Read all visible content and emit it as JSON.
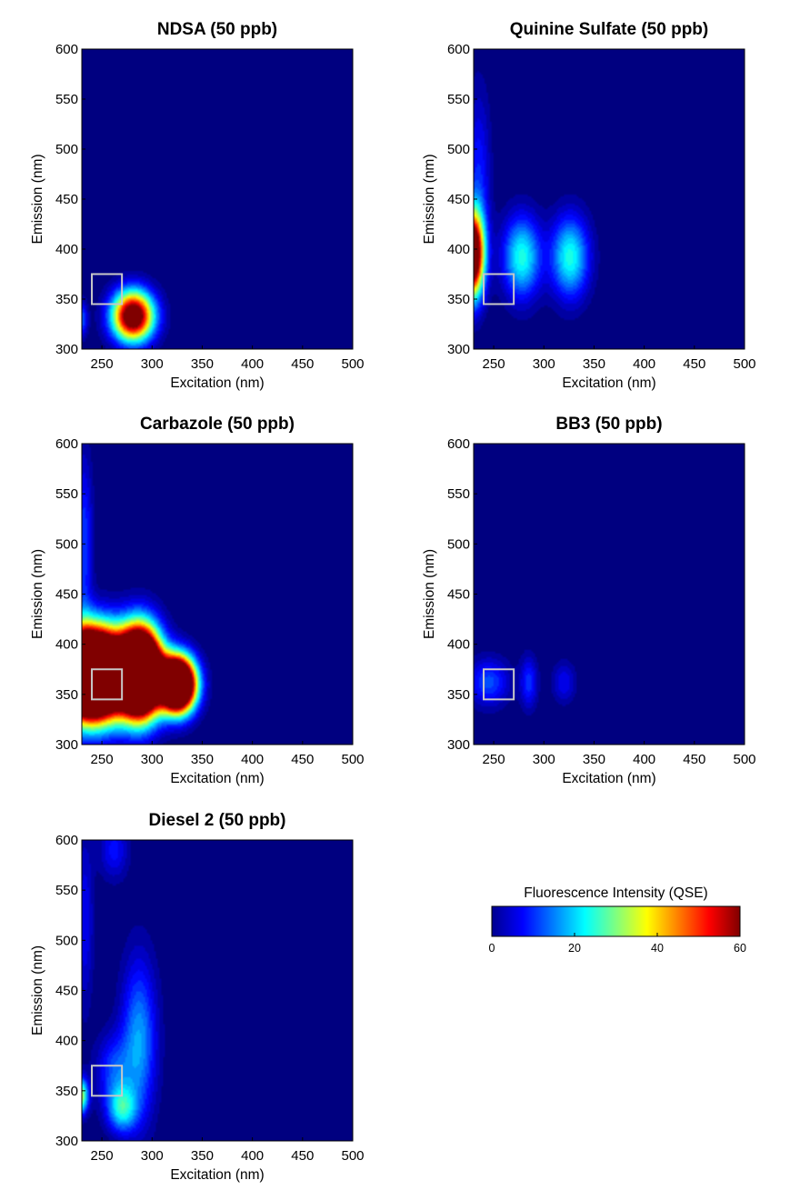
{
  "chart_data": [
    {
      "type": "heatmap",
      "title": "NDSA (50 ppb)",
      "xlabel": "Excitation (nm)",
      "ylabel": "Emission (nm)",
      "xlim": [
        230,
        500
      ],
      "ylim": [
        300,
        600
      ],
      "xticks": [
        250,
        300,
        350,
        400,
        450,
        500
      ],
      "yticks": [
        300,
        350,
        400,
        450,
        500,
        550,
        600
      ],
      "highlight_box": {
        "x": [
          240,
          270
        ],
        "y": [
          345,
          375
        ]
      },
      "peaks": [
        {
          "ex": 281,
          "em": 333,
          "intensity": 75,
          "sx": 14,
          "sy": 17
        },
        {
          "ex": 230,
          "em": 330,
          "intensity": 14,
          "sx": 4,
          "sy": 12
        }
      ]
    },
    {
      "type": "heatmap",
      "title": "Quinine Sulfate (50 ppb)",
      "xlabel": "Excitation (nm)",
      "ylabel": "Emission (nm)",
      "xlim": [
        230,
        500
      ],
      "ylim": [
        300,
        600
      ],
      "xticks": [
        250,
        300,
        350,
        400,
        450,
        500
      ],
      "yticks": [
        300,
        350,
        400,
        450,
        500,
        550,
        600
      ],
      "highlight_box": {
        "x": [
          240,
          270
        ],
        "y": [
          345,
          375
        ]
      },
      "peaks": [
        {
          "ex": 228,
          "em": 395,
          "intensity": 90,
          "sx": 8,
          "sy": 28
        },
        {
          "ex": 278,
          "em": 392,
          "intensity": 25,
          "sx": 13,
          "sy": 28
        },
        {
          "ex": 326,
          "em": 392,
          "intensity": 25,
          "sx": 13,
          "sy": 28
        },
        {
          "ex": 235,
          "em": 470,
          "intensity": 10,
          "sx": 8,
          "sy": 60
        }
      ]
    },
    {
      "type": "heatmap",
      "title": "Carbazole (50 ppb)",
      "xlabel": "Excitation (nm)",
      "ylabel": "Emission (nm)",
      "xlim": [
        230,
        500
      ],
      "ylim": [
        300,
        600
      ],
      "xticks": [
        250,
        300,
        350,
        400,
        450,
        500
      ],
      "yticks": [
        300,
        350,
        400,
        450,
        500,
        550,
        600
      ],
      "highlight_box": {
        "x": [
          240,
          270
        ],
        "y": [
          345,
          375
        ]
      },
      "peaks": [
        {
          "ex": 240,
          "em": 370,
          "intensity": 200,
          "sx": 22,
          "sy": 28
        },
        {
          "ex": 288,
          "em": 372,
          "intensity": 170,
          "sx": 14,
          "sy": 28
        },
        {
          "ex": 325,
          "em": 360,
          "intensity": 140,
          "sx": 12,
          "sy": 18
        },
        {
          "ex": 232,
          "em": 500,
          "intensity": 12,
          "sx": 6,
          "sy": 60
        }
      ]
    },
    {
      "type": "heatmap",
      "title": "BB3 (50 ppb)",
      "xlabel": "Excitation (nm)",
      "ylabel": "Emission (nm)",
      "xlim": [
        230,
        500
      ],
      "ylim": [
        300,
        600
      ],
      "xticks": [
        250,
        300,
        350,
        400,
        450,
        500
      ],
      "yticks": [
        300,
        350,
        400,
        450,
        500,
        550,
        600
      ],
      "highlight_box": {
        "x": [
          240,
          270
        ],
        "y": [
          345,
          375
        ]
      },
      "peaks": [
        {
          "ex": 245,
          "em": 362,
          "intensity": 13,
          "sx": 14,
          "sy": 16
        },
        {
          "ex": 285,
          "em": 362,
          "intensity": 11,
          "sx": 6,
          "sy": 18
        },
        {
          "ex": 320,
          "em": 362,
          "intensity": 8,
          "sx": 8,
          "sy": 14
        }
      ]
    },
    {
      "type": "heatmap",
      "title": "Diesel 2 (50 ppb)",
      "xlabel": "Excitation (nm)",
      "ylabel": "Emission (nm)",
      "xlim": [
        230,
        500
      ],
      "ylim": [
        300,
        600
      ],
      "xticks": [
        250,
        300,
        350,
        400,
        450,
        500
      ],
      "yticks": [
        300,
        350,
        400,
        450,
        500,
        550,
        600
      ],
      "highlight_box": {
        "x": [
          240,
          270
        ],
        "y": [
          345,
          375
        ]
      },
      "peaks": [
        {
          "ex": 229,
          "em": 345,
          "intensity": 35,
          "sx": 5,
          "sy": 12
        },
        {
          "ex": 270,
          "em": 332,
          "intensity": 22,
          "sx": 10,
          "sy": 16
        },
        {
          "ex": 287,
          "em": 400,
          "intensity": 18,
          "sx": 12,
          "sy": 55
        },
        {
          "ex": 262,
          "em": 370,
          "intensity": 12,
          "sx": 12,
          "sy": 25
        },
        {
          "ex": 262,
          "em": 590,
          "intensity": 9,
          "sx": 10,
          "sy": 20
        },
        {
          "ex": 233,
          "em": 520,
          "intensity": 8,
          "sx": 6,
          "sy": 60
        }
      ]
    }
  ],
  "colorbar": {
    "title": "Fluorescence Intensity (QSE)",
    "min": 0,
    "max": 60,
    "ticks": [
      0,
      20,
      40,
      60
    ],
    "colormap": "jet",
    "orientation": "horizontal"
  },
  "colors": {
    "box_outline": "#c8c8c8",
    "background": "#ffffff",
    "axis": "#000000"
  }
}
